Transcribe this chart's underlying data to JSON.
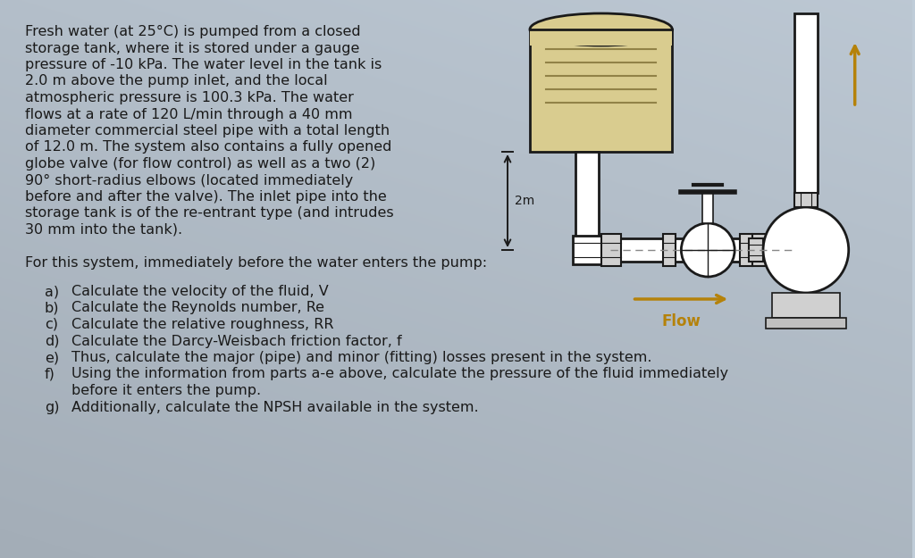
{
  "bg_color": "#bfccd8",
  "text_color": "#1a1a1a",
  "title_text": [
    "Fresh water (at 25°C) is pumped from a closed",
    "storage tank, where it is stored under a gauge",
    "pressure of -10 kPa. The water level in the tank is",
    "2.0 m above the pump inlet, and the local",
    "atmospheric pressure is 100.3 kPa. The water",
    "flows at a rate of 120 L/min through a 40 mm",
    "diameter commercial steel pipe with a total length",
    "of 12.0 m. The system also contains a fully opened",
    "globe valve (for flow control) as well as a two (2)",
    "90° short-radius elbows (located immediately",
    "before and after the valve). The inlet pipe into the",
    "storage tank is of the re-entrant type (and intrudes",
    "30 mm into the tank)."
  ],
  "sub_text": "For this system, immediately before the water enters the pump:",
  "items": [
    [
      "a)",
      "Calculate the velocity of the fluid, V"
    ],
    [
      "b)",
      "Calculate the Reynolds number, Re"
    ],
    [
      "c)",
      "Calculate the relative roughness, RR"
    ],
    [
      "d)",
      "Calculate the Darcy-Weisbach friction factor, f"
    ],
    [
      "e)",
      "Thus, calculate the major (pipe) and minor (fitting) losses present in the system."
    ],
    [
      "f)",
      "Using the information from parts a-e above, calculate the pressure of the fluid immediately"
    ],
    [
      "",
      "before it enters the pump."
    ],
    [
      "g)",
      "Additionally, calculate the NPSH available in the system."
    ]
  ],
  "flow_color": "#b5820a",
  "diagram_color": "#1a1a1a",
  "tank_fill": "#d9cc8f",
  "tank_fill_water": "#c8b86a"
}
